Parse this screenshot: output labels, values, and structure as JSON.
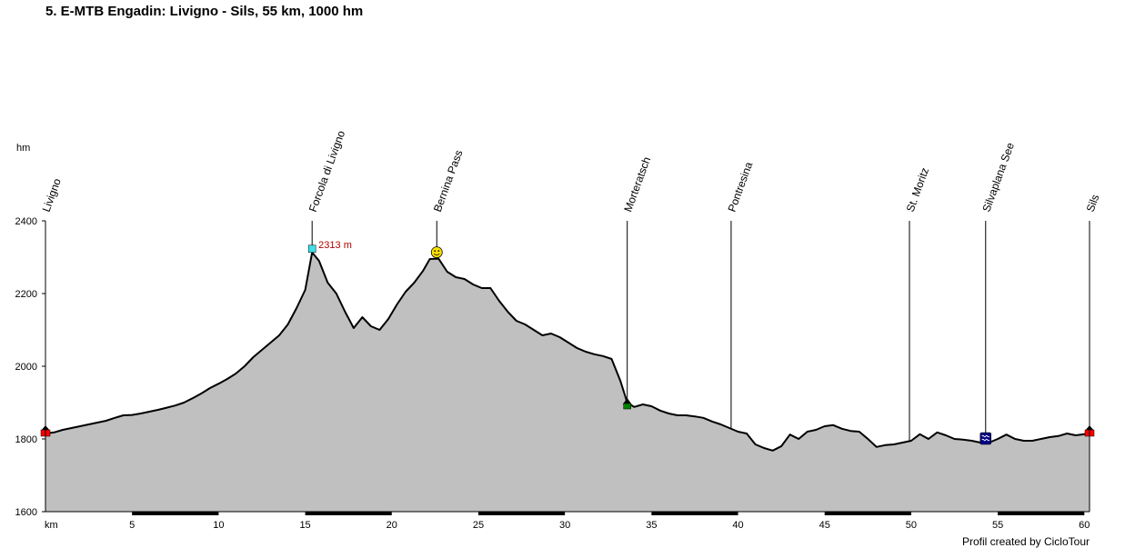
{
  "chart_data": {
    "type": "area",
    "title": "5. E-MTB Engadin: Livigno - Sils, 55 km, 1000 hm",
    "xlabel": "km",
    "ylabel": "hm",
    "xlim": [
      0,
      60.3
    ],
    "ylim": [
      1600,
      2400
    ],
    "x_ticks": [
      5,
      10,
      15,
      20,
      25,
      30,
      35,
      40,
      45,
      50,
      55,
      60
    ],
    "y_ticks": [
      1600,
      1800,
      2000,
      2200,
      2400
    ],
    "fill_color": "#c0c0c0",
    "line_color": "#000000",
    "profile": [
      [
        0,
        1815
      ],
      [
        0.5,
        1818
      ],
      [
        1,
        1825
      ],
      [
        1.5,
        1830
      ],
      [
        2,
        1835
      ],
      [
        2.5,
        1840
      ],
      [
        3,
        1845
      ],
      [
        3.5,
        1850
      ],
      [
        4,
        1858
      ],
      [
        4.5,
        1865
      ],
      [
        5,
        1866
      ],
      [
        5.5,
        1870
      ],
      [
        6,
        1875
      ],
      [
        6.5,
        1880
      ],
      [
        7,
        1886
      ],
      [
        7.5,
        1892
      ],
      [
        8,
        1900
      ],
      [
        8.5,
        1912
      ],
      [
        9,
        1925
      ],
      [
        9.5,
        1940
      ],
      [
        10,
        1952
      ],
      [
        10.5,
        1965
      ],
      [
        11,
        1980
      ],
      [
        11.5,
        2000
      ],
      [
        12,
        2025
      ],
      [
        12.5,
        2045
      ],
      [
        13,
        2065
      ],
      [
        13.5,
        2085
      ],
      [
        14,
        2115
      ],
      [
        14.5,
        2160
      ],
      [
        15,
        2210
      ],
      [
        15.4,
        2313
      ],
      [
        15.8,
        2290
      ],
      [
        16.3,
        2230
      ],
      [
        16.8,
        2200
      ],
      [
        17.3,
        2150
      ],
      [
        17.8,
        2105
      ],
      [
        18.3,
        2135
      ],
      [
        18.8,
        2110
      ],
      [
        19.3,
        2100
      ],
      [
        19.8,
        2130
      ],
      [
        20.3,
        2170
      ],
      [
        20.8,
        2205
      ],
      [
        21.3,
        2230
      ],
      [
        21.8,
        2262
      ],
      [
        22.2,
        2295
      ],
      [
        22.7,
        2296
      ],
      [
        23.2,
        2260
      ],
      [
        23.7,
        2245
      ],
      [
        24.2,
        2240
      ],
      [
        24.7,
        2225
      ],
      [
        25.2,
        2215
      ],
      [
        25.7,
        2215
      ],
      [
        26.2,
        2180
      ],
      [
        26.7,
        2150
      ],
      [
        27.2,
        2125
      ],
      [
        27.7,
        2115
      ],
      [
        28.2,
        2100
      ],
      [
        28.7,
        2085
      ],
      [
        29.2,
        2090
      ],
      [
        29.7,
        2080
      ],
      [
        30.2,
        2065
      ],
      [
        30.7,
        2050
      ],
      [
        31.2,
        2040
      ],
      [
        31.7,
        2033
      ],
      [
        32.2,
        2028
      ],
      [
        32.7,
        2020
      ],
      [
        33.2,
        1960
      ],
      [
        33.6,
        1900
      ],
      [
        34,
        1888
      ],
      [
        34.5,
        1895
      ],
      [
        35,
        1890
      ],
      [
        35.5,
        1878
      ],
      [
        36,
        1870
      ],
      [
        36.5,
        1865
      ],
      [
        37,
        1865
      ],
      [
        37.5,
        1862
      ],
      [
        38,
        1858
      ],
      [
        38.5,
        1848
      ],
      [
        39,
        1840
      ],
      [
        39.5,
        1830
      ],
      [
        40,
        1820
      ],
      [
        40.5,
        1815
      ],
      [
        41,
        1785
      ],
      [
        41.5,
        1775
      ],
      [
        42,
        1768
      ],
      [
        42.5,
        1780
      ],
      [
        43,
        1812
      ],
      [
        43.5,
        1800
      ],
      [
        44,
        1820
      ],
      [
        44.5,
        1825
      ],
      [
        45,
        1835
      ],
      [
        45.5,
        1838
      ],
      [
        46,
        1828
      ],
      [
        46.5,
        1822
      ],
      [
        47,
        1820
      ],
      [
        47.5,
        1800
      ],
      [
        48,
        1778
      ],
      [
        48.5,
        1783
      ],
      [
        49,
        1785
      ],
      [
        49.5,
        1790
      ],
      [
        50,
        1795
      ],
      [
        50.5,
        1813
      ],
      [
        51,
        1800
      ],
      [
        51.5,
        1818
      ],
      [
        52,
        1810
      ],
      [
        52.5,
        1800
      ],
      [
        53,
        1798
      ],
      [
        53.5,
        1795
      ],
      [
        54,
        1790
      ],
      [
        54.5,
        1790
      ],
      [
        55,
        1800
      ],
      [
        55.5,
        1812
      ],
      [
        56,
        1800
      ],
      [
        56.5,
        1795
      ],
      [
        57,
        1795
      ],
      [
        57.5,
        1800
      ],
      [
        58,
        1805
      ],
      [
        58.5,
        1808
      ],
      [
        59,
        1815
      ],
      [
        59.5,
        1810
      ],
      [
        60.3,
        1815
      ]
    ],
    "waypoints": [
      {
        "name": "Livigno",
        "km": 0
      },
      {
        "name": "Forcola di Livigno",
        "km": 15.4
      },
      {
        "name": "Bernina Pass",
        "km": 22.6
      },
      {
        "name": "Morteratsch",
        "km": 33.6
      },
      {
        "name": "Pontresina",
        "km": 39.6
      },
      {
        "name": "St. Moritz",
        "km": 49.9
      },
      {
        "name": "Silvaplana See",
        "km": 54.3
      },
      {
        "name": "Sils",
        "km": 60.3
      }
    ],
    "annotations": [
      {
        "text": "2313 m",
        "km": 15.4,
        "elev": 2313
      }
    ]
  },
  "credit": "Profil created by CicloTour"
}
